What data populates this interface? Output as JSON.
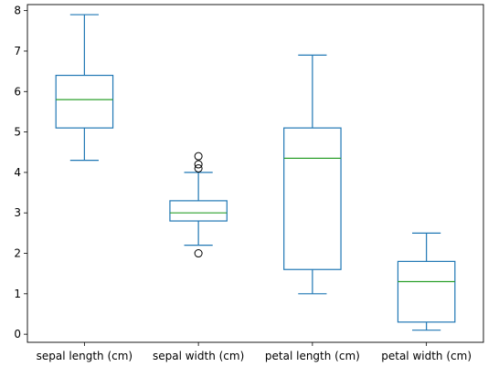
{
  "chart_data": {
    "type": "box",
    "title": "",
    "xlabel": "",
    "ylabel": "",
    "ylim": [
      -0.2,
      8.15
    ],
    "yticks": [
      "0",
      "1",
      "2",
      "3",
      "4",
      "5",
      "6",
      "7",
      "8"
    ],
    "categories": [
      "sepal length (cm)",
      "sepal width (cm)",
      "petal length (cm)",
      "petal width (cm)"
    ],
    "boxes": [
      {
        "whisker_low": 4.3,
        "q1": 5.1,
        "median": 5.8,
        "q3": 6.4,
        "whisker_high": 7.9,
        "fliers": []
      },
      {
        "whisker_low": 2.2,
        "q1": 2.8,
        "median": 3.0,
        "q3": 3.3,
        "whisker_high": 4.0,
        "fliers": [
          4.4,
          4.1,
          4.2,
          2.0
        ]
      },
      {
        "whisker_low": 1.0,
        "q1": 1.6,
        "median": 4.35,
        "q3": 5.1,
        "whisker_high": 6.9,
        "fliers": []
      },
      {
        "whisker_low": 0.1,
        "q1": 0.3,
        "median": 1.3,
        "q3": 1.8,
        "whisker_high": 2.5,
        "fliers": []
      }
    ],
    "colors": {
      "box": "#1f77b4",
      "median": "#2ca02c",
      "flier": "#000000"
    },
    "grid": false,
    "legend": "none"
  }
}
